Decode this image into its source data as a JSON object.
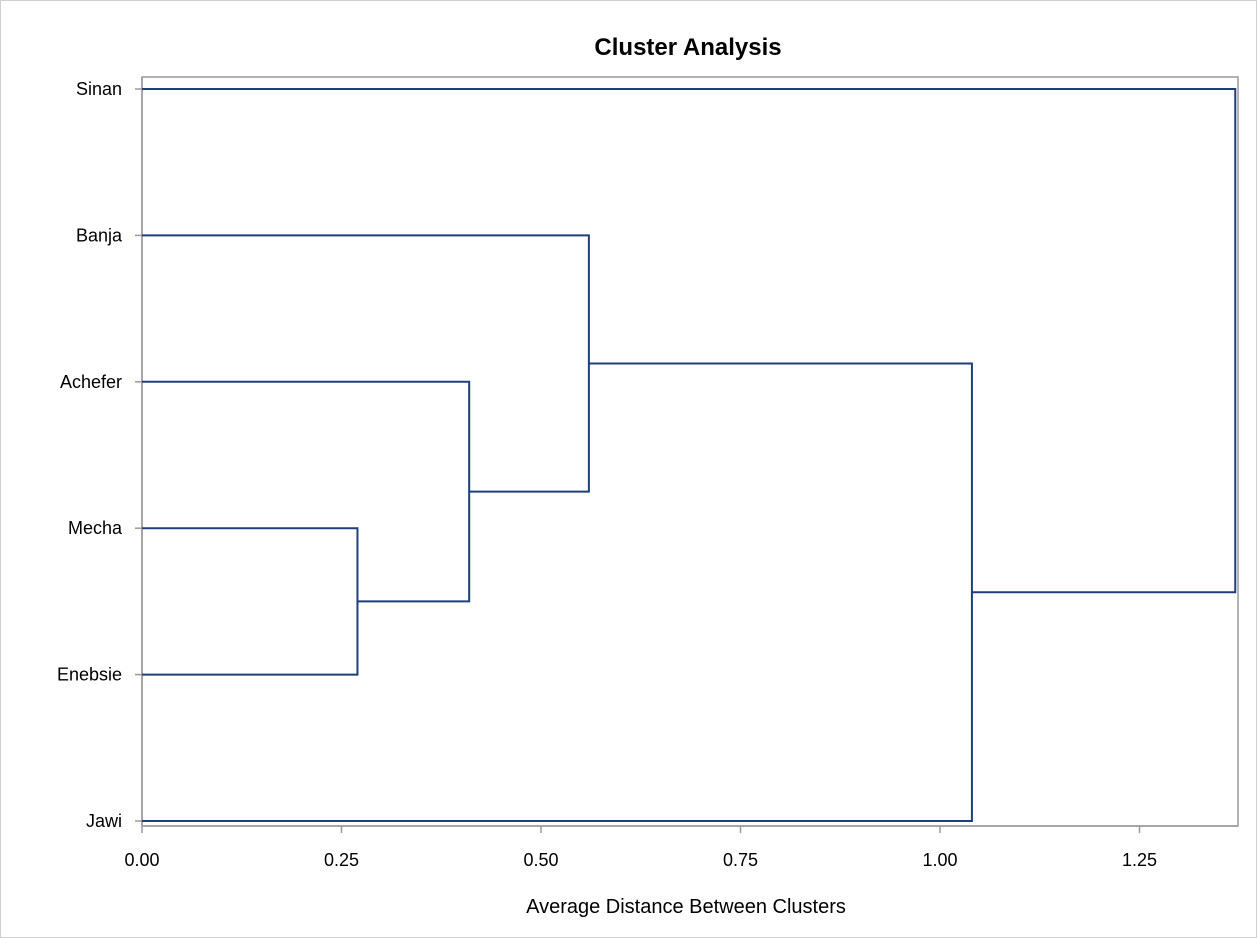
{
  "chart_data": {
    "type": "dendrogram",
    "title": "Cluster Analysis",
    "xlabel": "Average Distance Between Clusters",
    "ylabel": "",
    "xlim": [
      0,
      1.37
    ],
    "x_ticks": [
      "0.00",
      "0.25",
      "0.50",
      "0.75",
      "1.00",
      "1.25"
    ],
    "x_tick_values": [
      0,
      0.25,
      0.5,
      0.75,
      1.0,
      1.25
    ],
    "leaves": [
      "Sinan",
      "Banja",
      "Achefer",
      "Mecha",
      "Enebsie",
      "Jawi"
    ],
    "merges": [
      {
        "left": "Mecha",
        "right": "Enebsie",
        "distance": 0.27
      },
      {
        "left": "Achefer",
        "right": "Mecha+Enebsie",
        "distance": 0.41
      },
      {
        "left": "Banja",
        "right": "Achefer+Mecha+Enebsie",
        "distance": 0.56
      },
      {
        "left": "Banja+Achefer+Mecha+Enebsie",
        "right": "Jawi",
        "distance": 1.04
      },
      {
        "left": "Sinan",
        "right": "Banja+Achefer+Mecha+Enebsie+Jawi",
        "distance": 1.37
      }
    ],
    "grid": false,
    "line_color": "#1f3f7a"
  }
}
